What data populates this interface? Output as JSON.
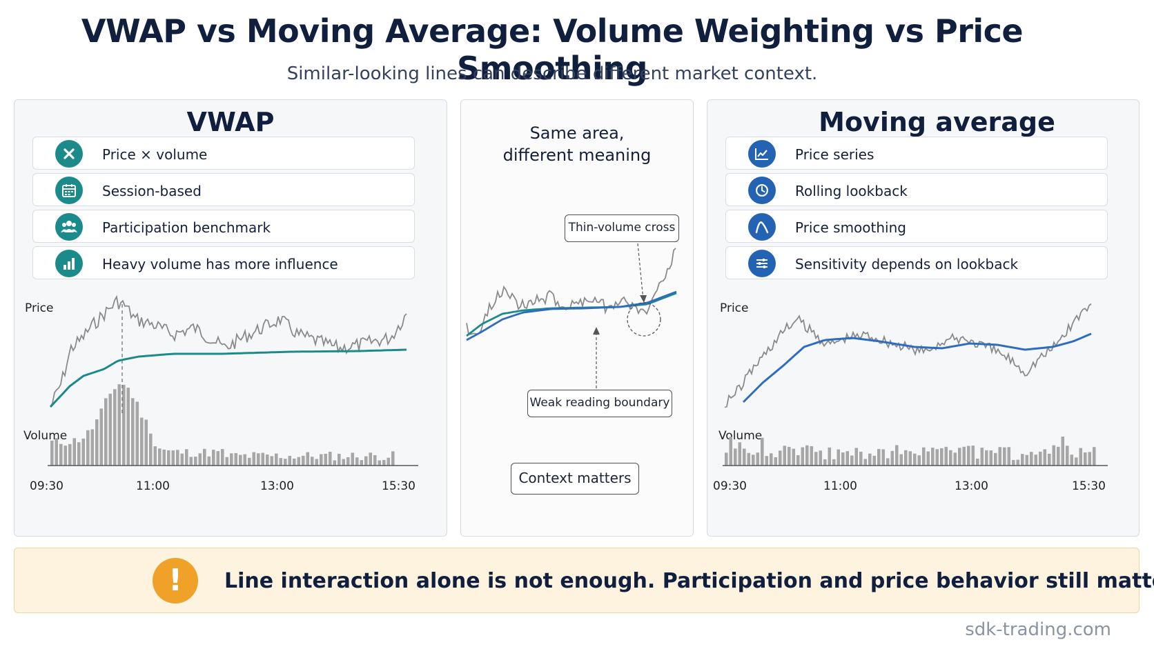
{
  "header": {
    "title": "VWAP vs Moving Average: Volume Weighting vs Price Smoothing",
    "subtitle": "Similar-looking lines can describe different market context."
  },
  "left_panel": {
    "title": "VWAP",
    "features": [
      {
        "label": "Price × volume",
        "icon": "multiply-icon"
      },
      {
        "label": "Session-based",
        "icon": "calendar-icon"
      },
      {
        "label": "Participation benchmark",
        "icon": "people-icon"
      },
      {
        "label": "Heavy volume has more influence",
        "icon": "bar-chart-icon"
      }
    ]
  },
  "middle_panel": {
    "title_line1": "Same area,",
    "title_line2": "different meaning",
    "callout_top": "Thin-volume cross",
    "callout_bottom": "Weak reading boundary",
    "context_box": "Context matters"
  },
  "right_panel": {
    "title": "Moving average",
    "features": [
      {
        "label": "Price series",
        "icon": "line-chart-icon"
      },
      {
        "label": "Rolling lookback",
        "icon": "clock-icon"
      },
      {
        "label": "Price smoothing",
        "icon": "curve-icon"
      },
      {
        "label": "Sensitivity depends on lookback",
        "icon": "sliders-icon"
      }
    ]
  },
  "banner": {
    "text": "Line interaction alone is not enough. Participation and price behavior still matter.",
    "icon": "warning-icon"
  },
  "footer": {
    "text": "sdk-trading.com"
  },
  "colors": {
    "vwap_line": "#1b8a8a",
    "ma_line": "#2e6cc0",
    "price_line": "#8a8a8a",
    "volume_bar": "#a6a6a6",
    "warning": "#efa227"
  },
  "chart_data": [
    {
      "type": "line",
      "panel": "left",
      "ylabel": "Price",
      "volume_label": "Volume",
      "x_ticks": [
        "09:30",
        "11:00",
        "13:00",
        "15:30"
      ],
      "series": [
        {
          "key": "price"
        },
        {
          "key": "vwap"
        },
        {
          "key": "volume"
        }
      ]
    },
    {
      "type": "line",
      "panel": "middle",
      "series": [
        {
          "key": "price"
        },
        {
          "key": "vwap"
        },
        {
          "key": "moving_average"
        }
      ]
    },
    {
      "type": "line",
      "panel": "right",
      "ylabel": "Price",
      "volume_label": "Volume",
      "x_ticks": [
        "09:30",
        "11:00",
        "13:00",
        "15:30"
      ],
      "series": [
        {
          "key": "price"
        },
        {
          "key": "moving_average"
        },
        {
          "key": "volume"
        }
      ]
    }
  ]
}
